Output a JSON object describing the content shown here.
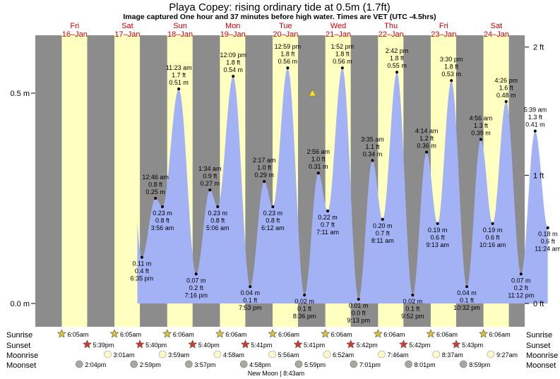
{
  "header": {
    "title": "Playa Copey: rising  ordinary tide at 0.5m (1.7ft)",
    "subtitle": "Image captured One hour and 37 minutes before high water. Times are VET (UTC -4.5hrs)"
  },
  "days": [
    {
      "dow": "Fri",
      "date": "16–Jan"
    },
    {
      "dow": "Sat",
      "date": "17–Jan"
    },
    {
      "dow": "Sun",
      "date": "18–Jan"
    },
    {
      "dow": "Mon",
      "date": "19–Jan"
    },
    {
      "dow": "Tue",
      "date": "20–Jan"
    },
    {
      "dow": "Wed",
      "date": "21–Jan"
    },
    {
      "dow": "Thu",
      "date": "22–Jan"
    },
    {
      "dow": "Fri",
      "date": "23–Jan"
    },
    {
      "dow": "Sat",
      "date": "24–Jan"
    }
  ],
  "axes": {
    "left_ticks": [
      {
        "value": 0.0,
        "label": "0.0 m"
      },
      {
        "value": 0.5,
        "label": "0.5 m"
      }
    ],
    "right_ticks": [
      {
        "feet": 0,
        "label": "0 ft"
      },
      {
        "feet": 1,
        "label": "1 ft"
      },
      {
        "feet": 2,
        "label": "2 ft"
      }
    ]
  },
  "colors": {
    "night": "#8c8c8c",
    "day": "#ffffc0",
    "water": "#a3b1f5",
    "day_label": "#cc0000",
    "sunrise_star": "#d9c23a",
    "sunset_star": "#d43a2a",
    "moonrise": "#fffac8",
    "moonset": "#a8a8a0"
  },
  "chart_data": {
    "type": "area",
    "units": "m",
    "ylim": [
      0.0,
      0.6
    ],
    "current_level": {
      "time": "Tue 20-Jan 12:15pm",
      "height": 0.5
    },
    "series": [
      {
        "values": [
          {
            "time": "Fri 16-Jan 6:35pm",
            "t": 42.58,
            "lines": [
              "0.11 m",
              "0.4 ft",
              "6:35 pm"
            ],
            "height": 0.11
          },
          {
            "time": "Sat 17-Jan 12:46am",
            "t": 48.77,
            "lines": [
              "12:46 am",
              "0.8 ft",
              "0.25 m"
            ],
            "height": 0.25
          },
          {
            "time": "Sat 17-Jan 3:56am",
            "t": 51.93,
            "lines": [
              "0.23 m",
              "0.8 ft",
              "3:56 am"
            ],
            "height": 0.23
          },
          {
            "time": "Sat 17-Jan 11:23am",
            "t": 59.38,
            "lines": [
              "11:23 am",
              "1.7 ft",
              "0.51 m"
            ],
            "height": 0.51
          },
          {
            "time": "Sat 17-Jan 7:16pm",
            "t": 67.27,
            "lines": [
              "0.07 m",
              "0.2 ft",
              "7:16 pm"
            ],
            "height": 0.07
          },
          {
            "time": "Sun 18-Jan 1:34am",
            "t": 73.57,
            "lines": [
              "1:34 am",
              "0.9 ft",
              "0.27 m"
            ],
            "height": 0.27
          },
          {
            "time": "Sun 18-Jan 5:06am",
            "t": 77.1,
            "lines": [
              "0.23 m",
              "0.8 ft",
              "5:06 am"
            ],
            "height": 0.23
          },
          {
            "time": "Sun 18-Jan 12:09pm",
            "t": 84.15,
            "lines": [
              "12:09 pm",
              "1.8 ft",
              "0.54 m"
            ],
            "height": 0.54
          },
          {
            "time": "Sun 18-Jan 7:53pm",
            "t": 91.88,
            "lines": [
              "0.04 m",
              "0.1 ft",
              "7:53 pm"
            ],
            "height": 0.04
          },
          {
            "time": "Mon 19-Jan 2:17am",
            "t": 98.28,
            "lines": [
              "2:17 am",
              "1.0 ft",
              "0.29 m"
            ],
            "height": 0.29
          },
          {
            "time": "Mon 19-Jan 6:12am",
            "t": 102.2,
            "lines": [
              "0.23 m",
              "0.8 ft",
              "6:12 am"
            ],
            "height": 0.23
          },
          {
            "time": "Mon 19-Jan 12:59pm",
            "t": 108.98,
            "lines": [
              "12:59 pm",
              "1.8 ft",
              "0.56 m"
            ],
            "height": 0.56
          },
          {
            "time": "Mon 19-Jan 8:36pm",
            "t": 116.6,
            "lines": [
              "0.02 m",
              "0.1 ft",
              "8:36 pm"
            ],
            "height": 0.02
          },
          {
            "time": "Tue 20-Jan 2:56am",
            "t": 122.93,
            "lines": [
              "2:56 am",
              "1.0 ft",
              "0.31 m"
            ],
            "height": 0.31
          },
          {
            "time": "Tue 20-Jan 7:11am",
            "t": 127.18,
            "lines": [
              "0.22 m",
              "0.7 ft",
              "7:11 am"
            ],
            "height": 0.22
          },
          {
            "time": "Tue 20-Jan 1:52pm",
            "t": 133.87,
            "lines": [
              "1:52 pm",
              "1.8 ft",
              "0.56 m"
            ],
            "height": 0.56
          },
          {
            "time": "Tue 20-Jan 9:13pm",
            "t": 141.22,
            "lines": [
              "0.01 m",
              "0.0 ft",
              "9:13 pm"
            ],
            "height": 0.01
          },
          {
            "time": "Wed 21-Jan 3:35am",
            "t": 147.58,
            "lines": [
              "3:35 am",
              "1.1 ft",
              "0.34 m"
            ],
            "height": 0.34
          },
          {
            "time": "Wed 21-Jan 8:11am",
            "t": 152.18,
            "lines": [
              "0.20 m",
              "0.7 ft",
              "8:11 am"
            ],
            "height": 0.2
          },
          {
            "time": "Wed 21-Jan 2:42pm",
            "t": 158.7,
            "lines": [
              "2:42 pm",
              "1.8 ft",
              "0.55 m"
            ],
            "height": 0.55
          },
          {
            "time": "Wed 21-Jan 9:52pm",
            "t": 165.87,
            "lines": [
              "0.02 m",
              "0.1 ft",
              "9:52 pm"
            ],
            "height": 0.02
          },
          {
            "time": "Thu 22-Jan 4:14am",
            "t": 172.23,
            "lines": [
              "4:14 am",
              "1.2 ft",
              "0.36 m"
            ],
            "height": 0.36
          },
          {
            "time": "Thu 22-Jan 9:13am",
            "t": 177.22,
            "lines": [
              "0.19 m",
              "0.6 ft",
              "9:13 am"
            ],
            "height": 0.19
          },
          {
            "time": "Thu 22-Jan 3:30pm",
            "t": 183.5,
            "lines": [
              "3:30 pm",
              "1.8 ft",
              "0.53 m"
            ],
            "height": 0.53
          },
          {
            "time": "Thu 22-Jan 10:32pm",
            "t": 190.53,
            "lines": [
              "0.04 m",
              "0.1 ft",
              "10:32 pm"
            ],
            "height": 0.04
          },
          {
            "time": "Fri 23-Jan 4:56am",
            "t": 196.93,
            "lines": [
              "4:56 am",
              "1.3 ft",
              "0.39 m"
            ],
            "height": 0.39
          },
          {
            "time": "Fri 23-Jan 10:16am",
            "t": 202.27,
            "lines": [
              "0.19 m",
              "0.6 ft",
              "10:16 am"
            ],
            "height": 0.19
          },
          {
            "time": "Fri 23-Jan 4:26pm",
            "t": 208.43,
            "lines": [
              "4:26 pm",
              "1.6 ft",
              "0.48 m"
            ],
            "height": 0.48
          },
          {
            "time": "Fri 23-Jan 11:12pm",
            "t": 215.2,
            "lines": [
              "0.07 m",
              "0.2 ft",
              "11:12 pm"
            ],
            "height": 0.07
          },
          {
            "time": "Sat 24-Jan 5:39am",
            "t": 221.65,
            "lines": [
              "5:39 am",
              "1.3 ft",
              "0.41 m"
            ],
            "height": 0.41
          },
          {
            "time": "Sat 24-Jan 11:24am",
            "t": 227.4,
            "lines": [
              "0.18 m",
              "0.6 ft",
              "11:24 am"
            ],
            "height": 0.18
          }
        ]
      }
    ]
  },
  "rows": {
    "sunrise_label": "Sunrise",
    "sunset_label": "Sunset",
    "moonrise_label": "Moonrise",
    "moonset_label": "Moonset",
    "sunrise": [
      "6:05am",
      "6:05am",
      "6:06am",
      "6:06am",
      "6:06am",
      "6:06am",
      "6:06am",
      "6:06am",
      "6:06am"
    ],
    "sunset": [
      "5:39pm",
      "5:40pm",
      "5:40pm",
      "5:41pm",
      "5:41pm",
      "5:42pm",
      "5:42pm",
      "5:43pm"
    ],
    "moonrise": [
      "3:01am",
      "3:59am",
      "4:58am",
      "5:56am",
      "6:52am",
      "7:46am",
      "8:37am",
      "9:27am"
    ],
    "moonset": [
      "2:04pm",
      "2:59pm",
      "3:57pm",
      "4:58pm",
      "5:59pm",
      "7:01pm",
      "8:01pm",
      "8:59pm"
    ],
    "moon_phase": "New Moon | 8:43am"
  }
}
